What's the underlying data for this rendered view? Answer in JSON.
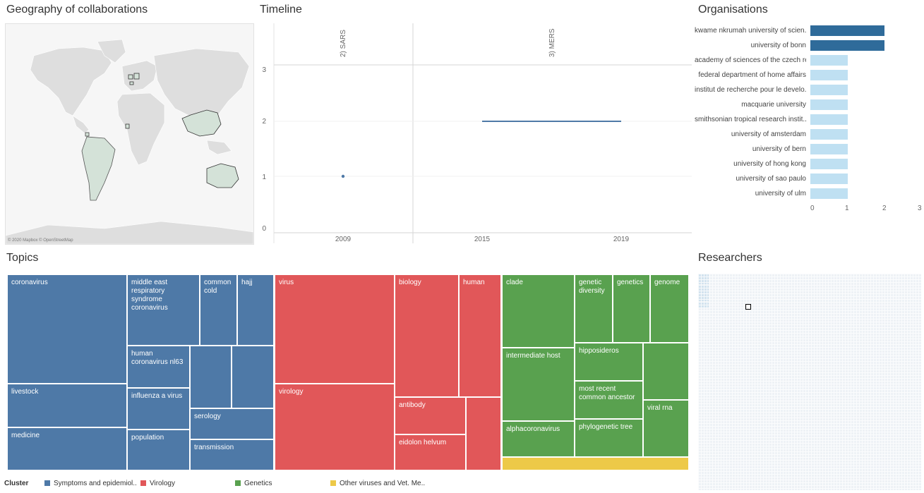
{
  "map": {
    "title": "Geography of collaborations",
    "attribution": "© 2020 Mapbox © OpenStreetMap"
  },
  "timeline": {
    "title": "Timeline",
    "columns": [
      "2) SARS",
      "3) MERS"
    ],
    "y_ticks": [
      "3",
      "2",
      "1",
      "0"
    ],
    "x_ticks": [
      "2009",
      "2015",
      "2019"
    ],
    "series_color": "#4e79a7"
  },
  "organisations": {
    "title": "Organisations",
    "x_ticks": [
      "0",
      "1",
      "2",
      "3"
    ],
    "items": [
      {
        "label": "kwame nkrumah university of scien..",
        "value": 2
      },
      {
        "label": "university of bonn",
        "value": 2
      },
      {
        "label": "academy of sciences of the czech re..",
        "value": 1
      },
      {
        "label": "federal department of home affairs",
        "value": 1
      },
      {
        "label": "institut de recherche pour le develo..",
        "value": 1
      },
      {
        "label": "macquarie university",
        "value": 1
      },
      {
        "label": "smithsonian tropical research instit..",
        "value": 1
      },
      {
        "label": "university of amsterdam",
        "value": 1
      },
      {
        "label": "university of bern",
        "value": 1
      },
      {
        "label": "university of hong kong",
        "value": 1
      },
      {
        "label": "university of sao paulo",
        "value": 1
      },
      {
        "label": "university of ulm",
        "value": 1
      }
    ],
    "dark_color": "#2f6b9a",
    "light_color": "#bfe0f2"
  },
  "topics": {
    "title": "Topics",
    "tiles": {
      "coronavirus": "coronavirus",
      "mers": "middle east respiratory syndrome coronavirus",
      "common_cold": "common cold",
      "hajj": "hajj",
      "hcov_nl63": "human coronavirus nl63",
      "livestock": "livestock",
      "influenza": "influenza a virus",
      "serology": "serology",
      "medicine": "medicine",
      "population": "population",
      "transmission": "transmission",
      "virus": "virus",
      "biology": "biology",
      "human": "human",
      "virology": "virology",
      "antibody": "antibody",
      "eidolon": "eidolon helvum",
      "clade": "clade",
      "genetic_diversity": "genetic diversity",
      "genetics": "genetics",
      "genome": "genome",
      "intermediate_host": "intermediate host",
      "hipposideros": "hipposideros",
      "mrca": "most recent common ancestor",
      "viral_rna": "viral rna",
      "alphacoronavirus": "alphacoronavirus",
      "phylogenetic_tree": "phylogenetic tree"
    }
  },
  "legend": {
    "title": "Cluster",
    "items": [
      {
        "label": "Symptoms and epidemiol..",
        "color": "#4e79a7"
      },
      {
        "label": "Virology",
        "color": "#e15759"
      },
      {
        "label": "Genetics",
        "color": "#59a14f"
      },
      {
        "label": "Other viruses and Vet. Me..",
        "color": "#edc948"
      }
    ]
  },
  "researchers": {
    "title": "Researchers"
  }
}
